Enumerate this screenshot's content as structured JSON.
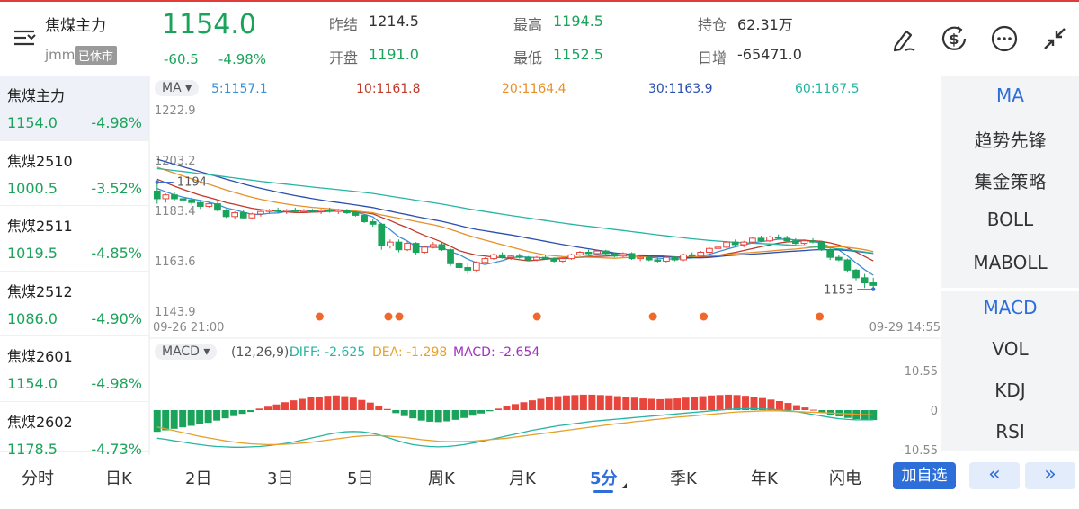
{
  "header": {
    "name": "焦煤主力",
    "code": "jmm",
    "status": "已休市",
    "price": "1154.0",
    "change": "-60.5",
    "change_pct": "-4.98%",
    "stats": [
      {
        "label": "昨结",
        "value": "1214.5",
        "color": "#333333"
      },
      {
        "label": "开盘",
        "value": "1191.0",
        "color": "#1aa35a"
      },
      {
        "label": "最高",
        "value": "1194.5",
        "color": "#1aa35a"
      },
      {
        "label": "最低",
        "value": "1152.5",
        "color": "#1aa35a"
      },
      {
        "label": "持仓",
        "value": "62.31万",
        "color": "#333333"
      },
      {
        "label": "日增",
        "value": "-65471.0",
        "color": "#333333"
      }
    ],
    "icons": [
      "edit-icon",
      "currency-icon",
      "more-icon",
      "collapse-icon"
    ]
  },
  "list": [
    {
      "name": "焦煤主力",
      "price": "1154.0",
      "change_pct": "-4.98%"
    },
    {
      "name": "焦煤2510",
      "price": "1000.5",
      "change_pct": "-3.52%"
    },
    {
      "name": "焦煤2511",
      "price": "1019.5",
      "change_pct": "-4.85%"
    },
    {
      "name": "焦煤2512",
      "price": "1086.0",
      "change_pct": "-4.90%"
    },
    {
      "name": "焦煤2601",
      "price": "1154.0",
      "change_pct": "-4.98%"
    },
    {
      "name": "焦煤2602",
      "price": "1178.5",
      "change_pct": "-4.73%"
    }
  ],
  "indicators": {
    "main": [
      "MA",
      "趋势先锋",
      "集金策略",
      "BOLL",
      "MABOLL"
    ],
    "sub": [
      "MACD",
      "VOL",
      "KDJ",
      "RSI"
    ]
  },
  "ma_legend": {
    "chip": "MA",
    "items": [
      {
        "text": "5:1157.1",
        "color": "#3b8fd8"
      },
      {
        "text": "10:1161.8",
        "color": "#c0392b"
      },
      {
        "text": "20:1164.4",
        "color": "#e8902a"
      },
      {
        "text": "30:1163.9",
        "color": "#2b4fb0"
      },
      {
        "text": "60:1167.5",
        "color": "#26b5a3"
      }
    ]
  },
  "macd_legend": {
    "chip": "MACD",
    "params": "(12,26,9):",
    "items": [
      {
        "text": "DIFF: -2.625",
        "color": "#26b5a3"
      },
      {
        "text": "DEA: -1.298",
        "color": "#e8a02a"
      },
      {
        "text": "MACD: -2.654",
        "color": "#a030c0"
      }
    ]
  },
  "chart_data": {
    "type": "candlestick",
    "y_ticks": [
      "1222.9",
      "1203.2",
      "1183.4",
      "1163.6",
      "1143.9"
    ],
    "ylim": [
      1143.9,
      1222.9
    ],
    "x_start": "09-26 21:00",
    "x_end": "09-29 14:55",
    "annotations": {
      "high": "1194",
      "low": "1153"
    },
    "ohlc": [
      [
        1191.0,
        1194.5,
        1186.0,
        1188.0
      ],
      [
        1188.0,
        1190.0,
        1186.5,
        1189.5
      ],
      [
        1189.5,
        1190.5,
        1187.0,
        1188.0
      ],
      [
        1188.0,
        1189.0,
        1186.0,
        1187.5
      ],
      [
        1187.5,
        1188.5,
        1185.5,
        1186.5
      ],
      [
        1186.5,
        1187.0,
        1184.0,
        1185.0
      ],
      [
        1185.0,
        1186.5,
        1184.5,
        1186.0
      ],
      [
        1186.0,
        1187.0,
        1183.0,
        1183.5
      ],
      [
        1183.5,
        1184.0,
        1180.5,
        1181.0
      ],
      [
        1181.0,
        1183.0,
        1180.0,
        1182.5
      ],
      [
        1182.5,
        1183.5,
        1180.0,
        1180.5
      ],
      [
        1180.5,
        1182.5,
        1180.0,
        1182.0
      ],
      [
        1182.0,
        1183.5,
        1181.0,
        1183.0
      ],
      [
        1183.0,
        1184.0,
        1182.0,
        1183.5
      ],
      [
        1183.5,
        1184.5,
        1182.5,
        1183.0
      ],
      [
        1183.0,
        1184.0,
        1182.0,
        1183.5
      ],
      [
        1183.5,
        1184.5,
        1182.5,
        1183.0
      ],
      [
        1183.0,
        1184.0,
        1182.5,
        1183.5
      ],
      [
        1183.5,
        1184.0,
        1182.5,
        1183.0
      ],
      [
        1183.0,
        1184.0,
        1182.0,
        1183.5
      ],
      [
        1183.5,
        1184.5,
        1182.5,
        1183.0
      ],
      [
        1183.0,
        1184.0,
        1182.0,
        1183.5
      ],
      [
        1183.5,
        1184.0,
        1182.0,
        1182.5
      ],
      [
        1182.5,
        1183.0,
        1181.0,
        1181.5
      ],
      [
        1181.5,
        1182.0,
        1178.5,
        1179.0
      ],
      [
        1179.0,
        1180.0,
        1177.0,
        1178.0
      ],
      [
        1178.0,
        1178.5,
        1168.0,
        1169.5
      ],
      [
        1169.5,
        1172.0,
        1168.5,
        1171.0
      ],
      [
        1171.0,
        1172.0,
        1167.0,
        1168.0
      ],
      [
        1168.0,
        1171.5,
        1167.5,
        1170.5
      ],
      [
        1170.5,
        1171.0,
        1166.0,
        1167.0
      ],
      [
        1167.0,
        1169.5,
        1166.5,
        1169.0
      ],
      [
        1169.0,
        1171.0,
        1168.5,
        1170.0
      ],
      [
        1170.0,
        1171.0,
        1167.5,
        1168.0
      ],
      [
        1168.0,
        1168.5,
        1161.5,
        1162.5
      ],
      [
        1162.5,
        1163.5,
        1160.0,
        1161.0
      ],
      [
        1161.0,
        1162.5,
        1158.5,
        1160.0
      ],
      [
        1160.0,
        1163.5,
        1159.0,
        1163.0
      ],
      [
        1163.0,
        1165.0,
        1162.5,
        1164.5
      ],
      [
        1164.5,
        1166.5,
        1164.0,
        1166.0
      ],
      [
        1166.0,
        1167.0,
        1164.5,
        1165.0
      ],
      [
        1165.0,
        1166.0,
        1164.0,
        1165.5
      ],
      [
        1165.5,
        1166.5,
        1164.5,
        1165.0
      ],
      [
        1165.0,
        1165.5,
        1163.5,
        1164.0
      ],
      [
        1164.0,
        1165.5,
        1163.5,
        1165.0
      ],
      [
        1165.0,
        1166.0,
        1164.0,
        1164.5
      ],
      [
        1164.5,
        1165.0,
        1163.0,
        1163.5
      ],
      [
        1163.5,
        1165.0,
        1163.0,
        1164.5
      ],
      [
        1164.5,
        1166.5,
        1164.0,
        1166.0
      ],
      [
        1166.0,
        1167.5,
        1165.5,
        1167.0
      ],
      [
        1167.0,
        1168.0,
        1166.0,
        1166.5
      ],
      [
        1166.5,
        1168.0,
        1166.0,
        1167.5
      ],
      [
        1167.5,
        1168.0,
        1166.0,
        1166.5
      ],
      [
        1166.5,
        1167.0,
        1165.0,
        1165.5
      ],
      [
        1165.5,
        1167.0,
        1165.0,
        1166.5
      ],
      [
        1166.5,
        1167.0,
        1164.0,
        1164.5
      ],
      [
        1164.5,
        1165.5,
        1163.5,
        1165.0
      ],
      [
        1165.0,
        1165.5,
        1163.5,
        1164.0
      ],
      [
        1164.0,
        1165.0,
        1163.0,
        1163.5
      ],
      [
        1163.5,
        1165.5,
        1163.0,
        1165.0
      ],
      [
        1165.0,
        1165.5,
        1163.5,
        1164.0
      ],
      [
        1164.0,
        1166.5,
        1163.5,
        1166.0
      ],
      [
        1166.0,
        1167.0,
        1165.0,
        1165.5
      ],
      [
        1165.5,
        1167.5,
        1165.0,
        1167.0
      ],
      [
        1167.0,
        1169.0,
        1166.5,
        1168.5
      ],
      [
        1168.5,
        1170.0,
        1167.5,
        1169.0
      ],
      [
        1169.0,
        1171.5,
        1168.5,
        1171.0
      ],
      [
        1171.0,
        1172.0,
        1169.5,
        1170.0
      ],
      [
        1170.0,
        1171.5,
        1169.0,
        1171.0
      ],
      [
        1171.0,
        1173.0,
        1170.5,
        1172.5
      ],
      [
        1172.5,
        1173.5,
        1171.0,
        1171.5
      ],
      [
        1171.5,
        1173.5,
        1171.0,
        1173.0
      ],
      [
        1173.0,
        1174.0,
        1172.0,
        1172.5
      ],
      [
        1172.5,
        1173.5,
        1171.0,
        1171.5
      ],
      [
        1171.5,
        1172.5,
        1170.0,
        1170.5
      ],
      [
        1170.5,
        1172.0,
        1170.0,
        1171.5
      ],
      [
        1171.5,
        1172.5,
        1170.5,
        1171.0
      ],
      [
        1171.0,
        1171.5,
        1167.5,
        1168.0
      ],
      [
        1168.0,
        1168.5,
        1164.0,
        1165.0
      ],
      [
        1165.0,
        1166.0,
        1163.5,
        1164.0
      ],
      [
        1164.0,
        1164.5,
        1159.0,
        1160.0
      ],
      [
        1160.0,
        1160.5,
        1156.0,
        1157.0
      ],
      [
        1157.0,
        1158.5,
        1153.0,
        1155.0
      ],
      [
        1155.0,
        1157.0,
        1152.5,
        1154.0
      ]
    ],
    "macd": {
      "ylim": [
        -10.55,
        10.55
      ],
      "y_ticks": [
        "10.55",
        "0",
        "-10.55"
      ],
      "hist": [
        -5.8,
        -5.4,
        -5.0,
        -4.6,
        -4.2,
        -3.8,
        -3.4,
        -2.8,
        -2.2,
        -1.6,
        -1.0,
        -0.5,
        0.4,
        0.9,
        1.5,
        2.1,
        2.6,
        3.0,
        3.4,
        3.6,
        3.8,
        3.9,
        3.7,
        3.3,
        2.7,
        2.0,
        1.2,
        0.3,
        -0.8,
        -1.6,
        -2.2,
        -2.8,
        -3.1,
        -3.2,
        -3.0,
        -2.6,
        -2.1,
        -1.5,
        -0.9,
        -0.3,
        0.4,
        1.0,
        1.6,
        2.1,
        2.6,
        3.0,
        3.4,
        3.7,
        3.9,
        4.0,
        4.1,
        4.1,
        4.0,
        3.9,
        3.7,
        3.5,
        3.3,
        3.1,
        3.0,
        2.9,
        3.0,
        3.1,
        3.3,
        3.5,
        3.7,
        3.9,
        4.0,
        4.1,
        4.0,
        3.8,
        3.5,
        3.2,
        2.8,
        2.4,
        1.9,
        1.3,
        0.7,
        0.1,
        -0.6,
        -1.2,
        -1.7,
        -2.1,
        -2.4,
        -2.6,
        -2.65
      ],
      "diff": [
        -7.5,
        -7.8,
        -8.2,
        -8.5,
        -8.9,
        -9.2,
        -9.5,
        -9.7,
        -9.8,
        -9.9,
        -9.9,
        -9.8,
        -9.7,
        -9.5,
        -9.2,
        -8.9,
        -8.5,
        -8.0,
        -7.5,
        -7.0,
        -6.5,
        -6.1,
        -5.8,
        -5.7,
        -5.8,
        -6.1,
        -6.6,
        -7.3,
        -8.0,
        -8.7,
        -9.2,
        -9.5,
        -9.7,
        -9.8,
        -9.7,
        -9.5,
        -9.2,
        -8.8,
        -8.4,
        -7.9,
        -7.4,
        -6.9,
        -6.4,
        -5.9,
        -5.4,
        -5.0,
        -4.6,
        -4.2,
        -3.9,
        -3.6,
        -3.3,
        -3.0,
        -2.8,
        -2.6,
        -2.4,
        -2.2,
        -2.0,
        -1.8,
        -1.6,
        -1.4,
        -1.2,
        -1.0,
        -0.8,
        -0.6,
        -0.4,
        -0.2,
        0.0,
        0.2,
        0.3,
        0.4,
        0.4,
        0.3,
        0.2,
        0.1,
        -0.1,
        -0.4,
        -0.8,
        -1.2,
        -1.6,
        -2.0,
        -2.3,
        -2.5,
        -2.6,
        -2.62,
        -2.625
      ],
      "dea": [
        -4.5,
        -5.0,
        -5.5,
        -6.0,
        -6.5,
        -7.0,
        -7.4,
        -7.8,
        -8.2,
        -8.5,
        -8.8,
        -9.0,
        -9.1,
        -9.2,
        -9.2,
        -9.1,
        -9.0,
        -8.8,
        -8.6,
        -8.3,
        -8.0,
        -7.7,
        -7.4,
        -7.1,
        -6.9,
        -6.8,
        -6.8,
        -6.9,
        -7.1,
        -7.3,
        -7.6,
        -7.9,
        -8.1,
        -8.3,
        -8.4,
        -8.4,
        -8.4,
        -8.3,
        -8.1,
        -7.9,
        -7.7,
        -7.5,
        -7.2,
        -6.9,
        -6.6,
        -6.3,
        -6.0,
        -5.7,
        -5.4,
        -5.1,
        -4.8,
        -4.5,
        -4.2,
        -3.9,
        -3.6,
        -3.4,
        -3.1,
        -2.9,
        -2.6,
        -2.4,
        -2.1,
        -1.9,
        -1.7,
        -1.5,
        -1.3,
        -1.1,
        -0.9,
        -0.7,
        -0.5,
        -0.4,
        -0.3,
        -0.2,
        -0.2,
        -0.2,
        -0.3,
        -0.4,
        -0.5,
        -0.6,
        -0.7,
        -0.8,
        -0.9,
        -1.0,
        -1.1,
        -1.2,
        -1.298
      ]
    }
  },
  "tabs": [
    "分时",
    "日K",
    "2日",
    "3日",
    "5日",
    "周K",
    "月K",
    "5分",
    "季K",
    "年K",
    "闪电"
  ],
  "selected_tab": "5分",
  "actions": {
    "add_watch": "加自选",
    "prev": "«",
    "next": "»"
  }
}
